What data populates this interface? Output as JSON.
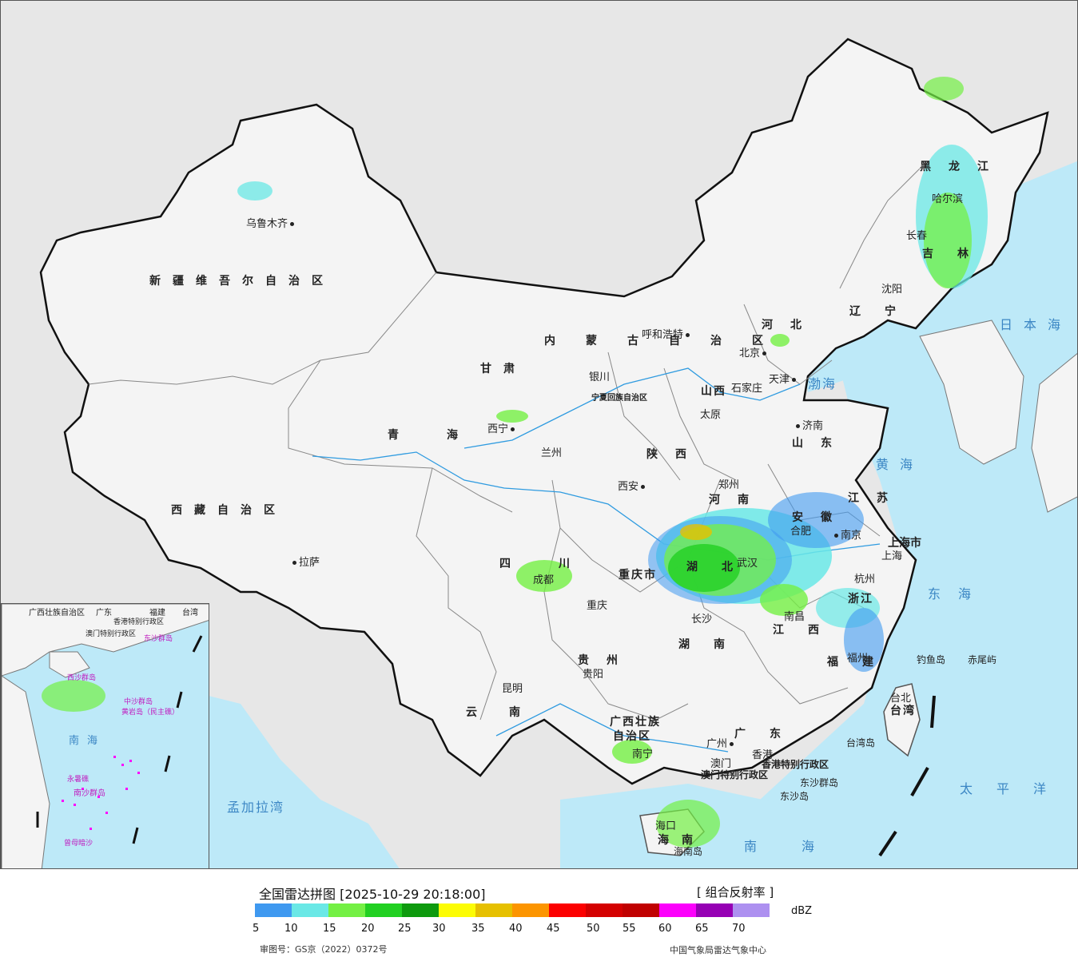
{
  "legend": {
    "title": "全国雷达拼图 [2025-10-29 20:18:00]",
    "product": "[ 组合反射率 ]",
    "unit": "dBZ",
    "colors": [
      "#3f99f0",
      "#6ae8e6",
      "#74f044",
      "#22d022",
      "#0e9a0e",
      "#fcfc05",
      "#e6c000",
      "#fc9500",
      "#fc0000",
      "#d40000",
      "#c00000",
      "#fc00fc",
      "#9600b4",
      "#ad90f0"
    ],
    "ticks": [
      "5",
      "10",
      "15",
      "20",
      "25",
      "30",
      "35",
      "40",
      "45",
      "50",
      "55",
      "60",
      "65",
      "70"
    ],
    "approval": "审图号：GS京（2022）0372号",
    "agency": "中国气象局雷达气象中心"
  },
  "cities": {
    "urumqi": "乌鲁木齐",
    "lhasa": "拉萨",
    "xining": "西宁",
    "lanzhou": "兰州",
    "yinchuan": "银川",
    "hohhot": "呼和浩特",
    "beijing": "北京",
    "tianjin": "天津",
    "shijiazhuang": "石家庄",
    "taiyuan": "太原",
    "jinan": "济南",
    "zhengzhou": "郑州",
    "xian": "西安",
    "chengdu": "成都",
    "chongqing": "重庆",
    "guiyang": "贵阳",
    "kunming": "昆明",
    "nanning": "南宁",
    "guangzhou": "广州",
    "hongkong": "香港",
    "macau": "澳门",
    "haikou": "海口",
    "changsha": "长沙",
    "wuhan": "武汉",
    "nanchang": "南昌",
    "hefei": "合肥",
    "nanjing": "南京",
    "shanghai": "上海",
    "hangzhou": "杭州",
    "fuzhou": "福州",
    "taipei": "台北",
    "shenyang": "沈阳",
    "changchun": "长春",
    "harbin": "哈尔滨"
  },
  "provinces": {
    "xinjiang": "新疆维吾尔自治区",
    "tibet": "西藏自治区",
    "qinghai": "青海",
    "gansu": "甘肃",
    "sichuan": "四川",
    "yunnan": "云南",
    "guizhou": "贵州",
    "guangxi_1": "广西壮族",
    "guangxi_2": "自治区",
    "guangdong": "广东",
    "hainan": "海南",
    "hunan": "湖南",
    "hubei": "湖北",
    "jiangxi": "江西",
    "fujian": "福建",
    "zhejiang": "浙江",
    "anhui": "安徽",
    "jiangsu": "江苏",
    "shandong": "山东",
    "henan": "河南",
    "shanxi": "山西",
    "shaanxi": "陕西",
    "hebei": "河北",
    "neimenggu": "内蒙古自治区",
    "ningxia": "宁夏回族自治区",
    "liaoning": "辽宁",
    "jilin": "吉林",
    "heilongjiang": "黑龙江",
    "taiwan": "台湾",
    "chongqing_muni": "重庆市",
    "shanghai_muni": "上海市",
    "hk_sar": "香港特别行政区",
    "macau_sar": "澳门特别行政区"
  },
  "seas": {
    "japan_sea": "日本海",
    "yellow_sea": "黄海",
    "east_sea": "东海",
    "pacific": "太平洋",
    "south_sea": "南海",
    "bengal": "孟加拉湾",
    "bohai": "渤海"
  },
  "islands": {
    "diaoyu": "钓鱼岛",
    "chiwei": "赤尾屿",
    "taiwan_island": "台湾岛",
    "dongsha_group": "东沙群岛",
    "dongsha_island": "东沙岛",
    "hainan_island": "海南岛"
  },
  "inset": {
    "guangxi": "广西壮族自治区",
    "guangdong": "广东",
    "fujian": "福建",
    "taiwan": "台湾",
    "hk": "香港特别行政区",
    "macau": "澳门特别行政区",
    "dongsha": "东沙群岛",
    "xisha": "西沙群岛",
    "zhongsha": "中沙群岛",
    "huangyan": "黄岩岛（民主礁）",
    "south_sea": "南海",
    "nansha": "南沙群岛",
    "yongshu": "永暑礁",
    "zengmu": "曾母暗沙"
  }
}
